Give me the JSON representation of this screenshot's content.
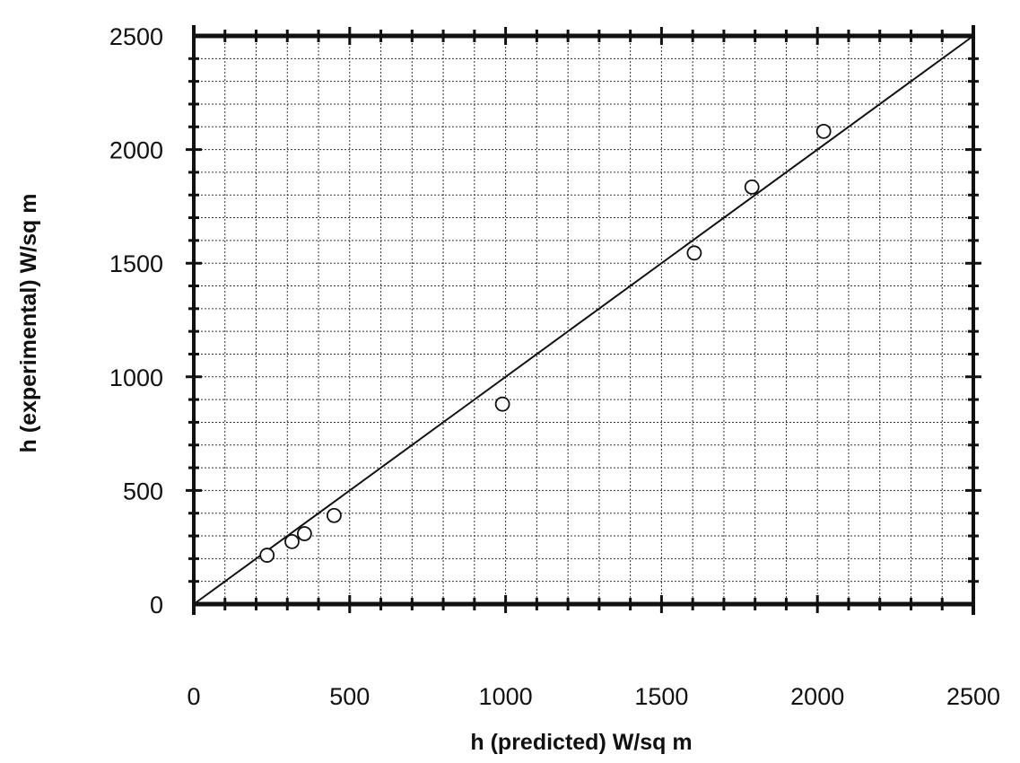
{
  "chart_data": {
    "type": "scatter",
    "title": "",
    "xlabel": "h (predicted) W/sq m",
    "ylabel": "h (experimental) W/sq m",
    "xlim": [
      0,
      2500
    ],
    "ylim": [
      0,
      2500
    ],
    "grid": true,
    "x_ticks": [
      0,
      500,
      1000,
      1500,
      2000,
      2500
    ],
    "y_ticks": [
      0,
      500,
      1000,
      1500,
      2000,
      2500
    ],
    "points": [
      {
        "x": 235,
        "y": 215
      },
      {
        "x": 315,
        "y": 275
      },
      {
        "x": 355,
        "y": 310
      },
      {
        "x": 450,
        "y": 390
      },
      {
        "x": 990,
        "y": 880
      },
      {
        "x": 1605,
        "y": 1545
      },
      {
        "x": 1790,
        "y": 1835
      },
      {
        "x": 2020,
        "y": 2080
      }
    ],
    "reference_line": {
      "from": [
        0,
        0
      ],
      "to": [
        2500,
        2500
      ]
    },
    "marker": "open-circle",
    "colors": {
      "ink": "#111111",
      "background": "#ffffff"
    }
  }
}
